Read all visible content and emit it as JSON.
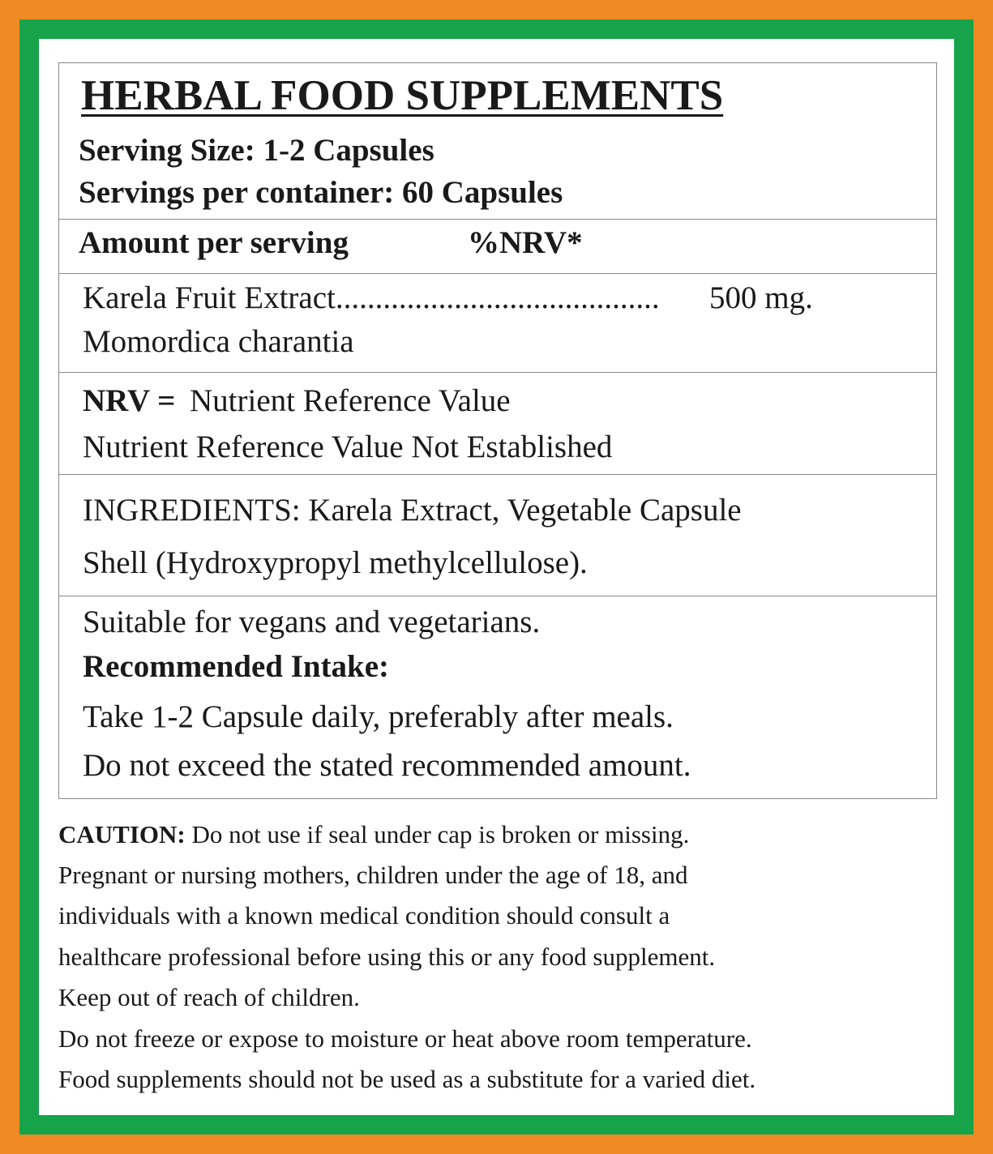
{
  "label": {
    "title": "HERBAL FOOD SUPPLEMENTS",
    "serving_size": "Serving Size: 1-2 Capsules",
    "servings_per_container": "Servings per container: 60 Capsules",
    "amount_header": {
      "left": "Amount per serving",
      "right": "%NRV*"
    },
    "ingredient": {
      "name": "Karela Fruit Extract.........................................",
      "amount": "500 mg.",
      "latin": "Momordica charantia"
    },
    "nrv": {
      "term": "NRV =",
      "definition": "Nutrient Reference Value",
      "note": "Nutrient Reference Value Not Established"
    },
    "ingredients": [
      "INGREDIENTS: Karela Extract, Vegetable Capsule",
      "Shell (Hydroxypropyl methylcellulose)."
    ],
    "suitability": "Suitable for vegans and vegetarians.",
    "intake": {
      "heading": "Recommended Intake:",
      "lines": [
        "Take 1-2 Capsule daily, preferably after meals.",
        "Do not exceed the stated recommended amount."
      ]
    },
    "caution": {
      "heading": "CAUTION:",
      "first_line": "Do not use if seal under cap is broken or missing.",
      "lines": [
        "Pregnant or nursing mothers, children under the age of 18, and",
        "individuals with a known medical condition should consult a",
        "healthcare professional before using this or any food supplement.",
        "Keep out of reach of children.",
        "Do not freeze or expose to moisture or heat above room temperature.",
        "Food supplements should not be used as a substitute for a varied diet."
      ]
    }
  }
}
